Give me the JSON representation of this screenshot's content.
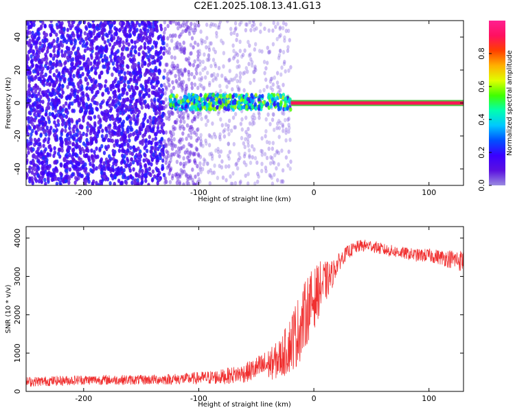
{
  "title": "C2E1.2025.108.13.41.G13",
  "colors": {
    "snr_line": "#f03030",
    "colorbar_stops": [
      "#9a8be0",
      "#5a10e0",
      "#3a00ff",
      "#0050ff",
      "#00c8ff",
      "#00ffb0",
      "#40ff00",
      "#e0ff00",
      "#ffb000",
      "#ff4000",
      "#ff1060",
      "#ff2090"
    ]
  },
  "chart_data": [
    {
      "type": "heatmap",
      "title": "C2E1.2025.108.13.41.G13",
      "xlabel": "Height of straight line (km)",
      "ylabel": "Frequency (Hz)",
      "xlim": [
        -250,
        130
      ],
      "ylim": [
        -50,
        50
      ],
      "xticks": [
        -200,
        -100,
        0,
        100
      ],
      "yticks": [
        -40,
        -20,
        0,
        20,
        40
      ],
      "colorbar": {
        "label": "Normalized spectral amplitude",
        "range": [
          0.0,
          1.0
        ],
        "ticks": [
          0.0,
          0.2,
          0.4,
          0.6,
          0.8
        ]
      },
      "regions": [
        {
          "x_range": [
            -250,
            -130
          ],
          "freq_range": [
            -50,
            50
          ],
          "amplitude": 0.15
        },
        {
          "x_range": [
            -130,
            -100
          ],
          "freq_range": [
            -50,
            50
          ],
          "amplitude": 0.06
        },
        {
          "x_range": [
            -100,
            -20
          ],
          "freq_range": [
            -50,
            50
          ],
          "amplitude": 0.03
        },
        {
          "x_range": [
            -125,
            -20
          ],
          "freq_range": [
            -4,
            5
          ],
          "amplitude": 0.4
        },
        {
          "x_range": [
            -20,
            130
          ],
          "freq_range": [
            -1,
            1
          ],
          "amplitude": 0.9
        }
      ]
    },
    {
      "type": "line",
      "xlabel": "Height of straight line (km)",
      "ylabel": "SNR (10 * v/v)",
      "xlim": [
        -250,
        130
      ],
      "ylim": [
        0,
        4300
      ],
      "xticks": [
        -200,
        -100,
        0,
        100
      ],
      "yticks": [
        0,
        1000,
        2000,
        3000,
        4000
      ],
      "series": [
        {
          "x": [
            -250,
            -200,
            -150,
            -110,
            -80,
            -60,
            -45,
            -35,
            -28,
            -22,
            -18,
            -15,
            -10,
            -5,
            0,
            5,
            10,
            15,
            20,
            25,
            30,
            40,
            50,
            60,
            70,
            80,
            90,
            100,
            110,
            120,
            130
          ],
          "y": [
            250,
            300,
            300,
            330,
            380,
            480,
            650,
            750,
            900,
            1150,
            1400,
            1500,
            1800,
            2200,
            2400,
            2700,
            2850,
            3000,
            3300,
            3500,
            3650,
            3800,
            3800,
            3700,
            3650,
            3600,
            3550,
            3550,
            3500,
            3450,
            3400
          ],
          "noise": [
            130,
            130,
            130,
            150,
            200,
            250,
            350,
            450,
            550,
            700,
            850,
            900,
            900,
            900,
            800,
            700,
            550,
            400,
            250,
            200,
            180,
            160,
            160,
            160,
            160,
            160,
            170,
            180,
            200,
            250,
            300
          ]
        }
      ]
    }
  ]
}
